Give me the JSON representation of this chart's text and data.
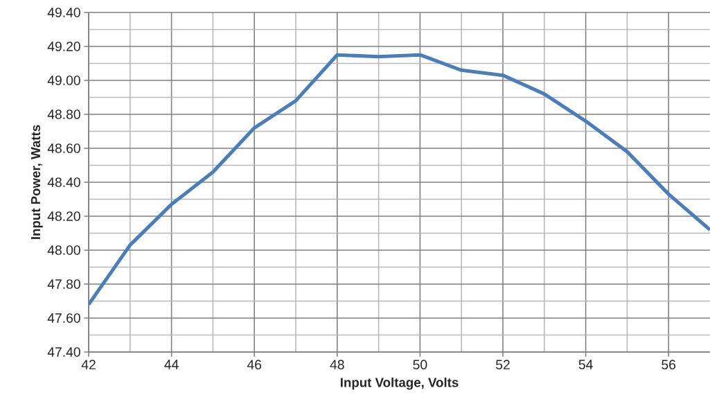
{
  "chart_data": {
    "type": "line",
    "xlabel": "Input Voltage, Volts",
    "ylabel": "Input Power, Watts",
    "x": [
      42,
      43,
      44,
      45,
      46,
      47,
      48,
      49,
      50,
      51,
      52,
      53,
      54,
      55,
      56,
      57
    ],
    "series": [
      {
        "color": "#4a7ebb",
        "values": [
          47.68,
          48.03,
          48.27,
          48.46,
          48.72,
          48.88,
          49.15,
          49.14,
          49.15,
          49.06,
          49.03,
          48.92,
          48.76,
          48.58,
          48.33,
          48.12
        ]
      }
    ],
    "xlim": [
      42,
      57
    ],
    "xticks": [
      42,
      44,
      46,
      48,
      50,
      52,
      54,
      56
    ],
    "ylim": [
      47.4,
      49.4
    ],
    "yticks": [
      {
        "value": 47.4,
        "label": "47.40"
      },
      {
        "value": 47.6,
        "label": "47.60"
      },
      {
        "value": 47.8,
        "label": "47.80"
      },
      {
        "value": 48.0,
        "label": "48.00"
      },
      {
        "value": 48.2,
        "label": "48.20"
      },
      {
        "value": 48.4,
        "label": "48.40"
      },
      {
        "value": 48.6,
        "label": "48.60"
      },
      {
        "value": 48.8,
        "label": "48.80"
      },
      {
        "value": 49.0,
        "label": "49.00"
      },
      {
        "value": 49.2,
        "label": "49.20"
      },
      {
        "value": 49.4,
        "label": "49.40"
      }
    ],
    "grid": true,
    "legend": false,
    "marker": "none",
    "line_style": "solid"
  }
}
